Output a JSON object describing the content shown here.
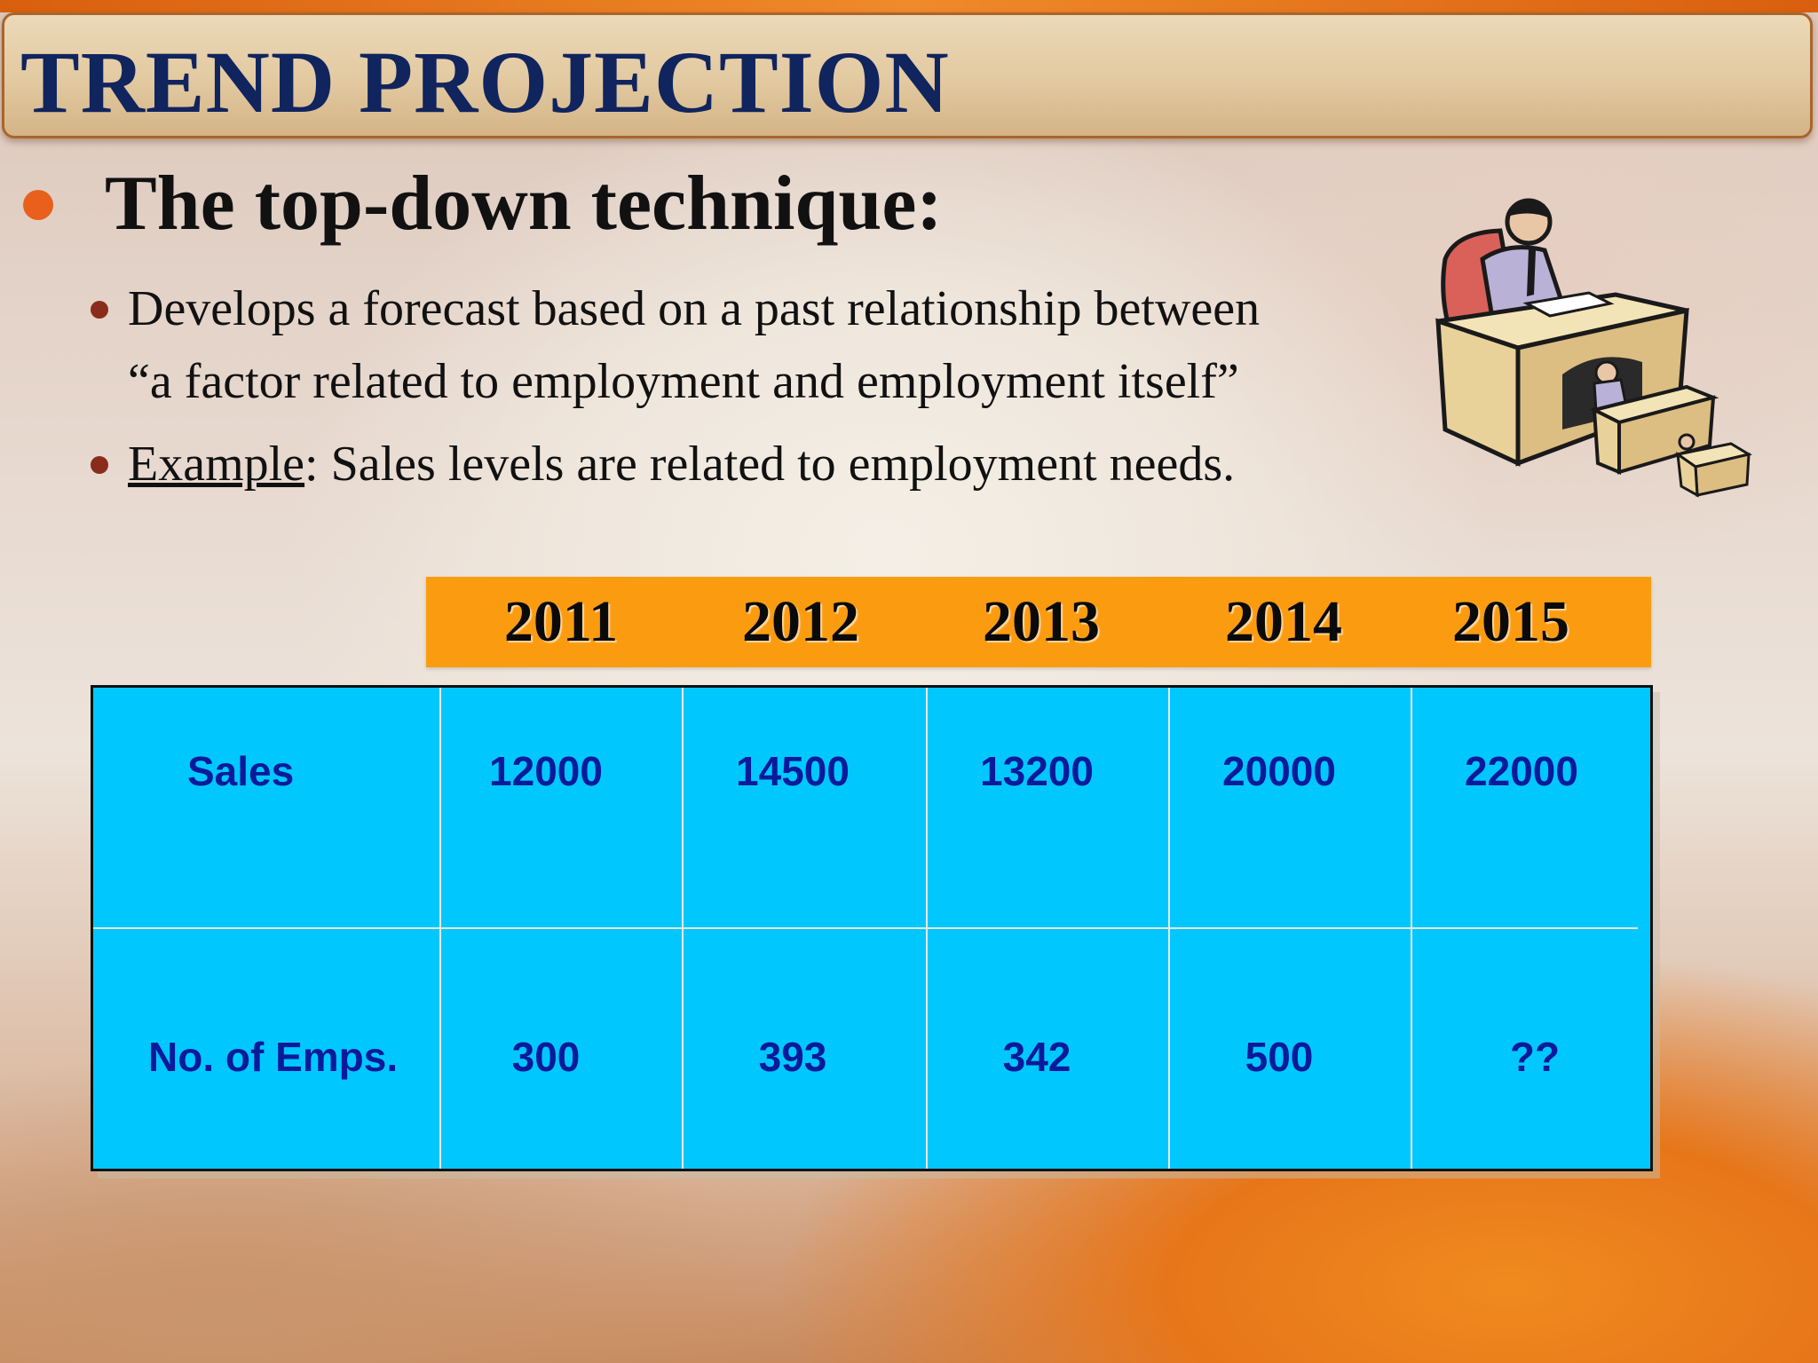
{
  "title": "TREND PROJECTION",
  "heading": "The top-down technique:",
  "bullets": [
    {
      "line1": "Develops a forecast based on a past relationship between",
      "line2": "“a factor related to employment and employment itself”"
    },
    {
      "label": "Example",
      "text": ": Sales levels are related to employment needs."
    }
  ],
  "clipart": {
    "icon": "businessman-at-desk-icon"
  },
  "table": {
    "years": [
      "2011",
      "2012",
      "2013",
      "2014",
      "2015"
    ],
    "rows": [
      {
        "label": "Sales",
        "values": [
          "12000",
          "14500",
          "13200",
          "20000",
          "22000"
        ]
      },
      {
        "label": "No. of Emps.",
        "values": [
          "300",
          "393",
          "342",
          "500",
          "??"
        ]
      }
    ]
  },
  "colors": {
    "title": "#10245e",
    "accent_bullet": "#e8601c",
    "year_bar": "#fb9c10",
    "table_bg": "#00c8ff",
    "table_text": "#0a1a9a"
  }
}
